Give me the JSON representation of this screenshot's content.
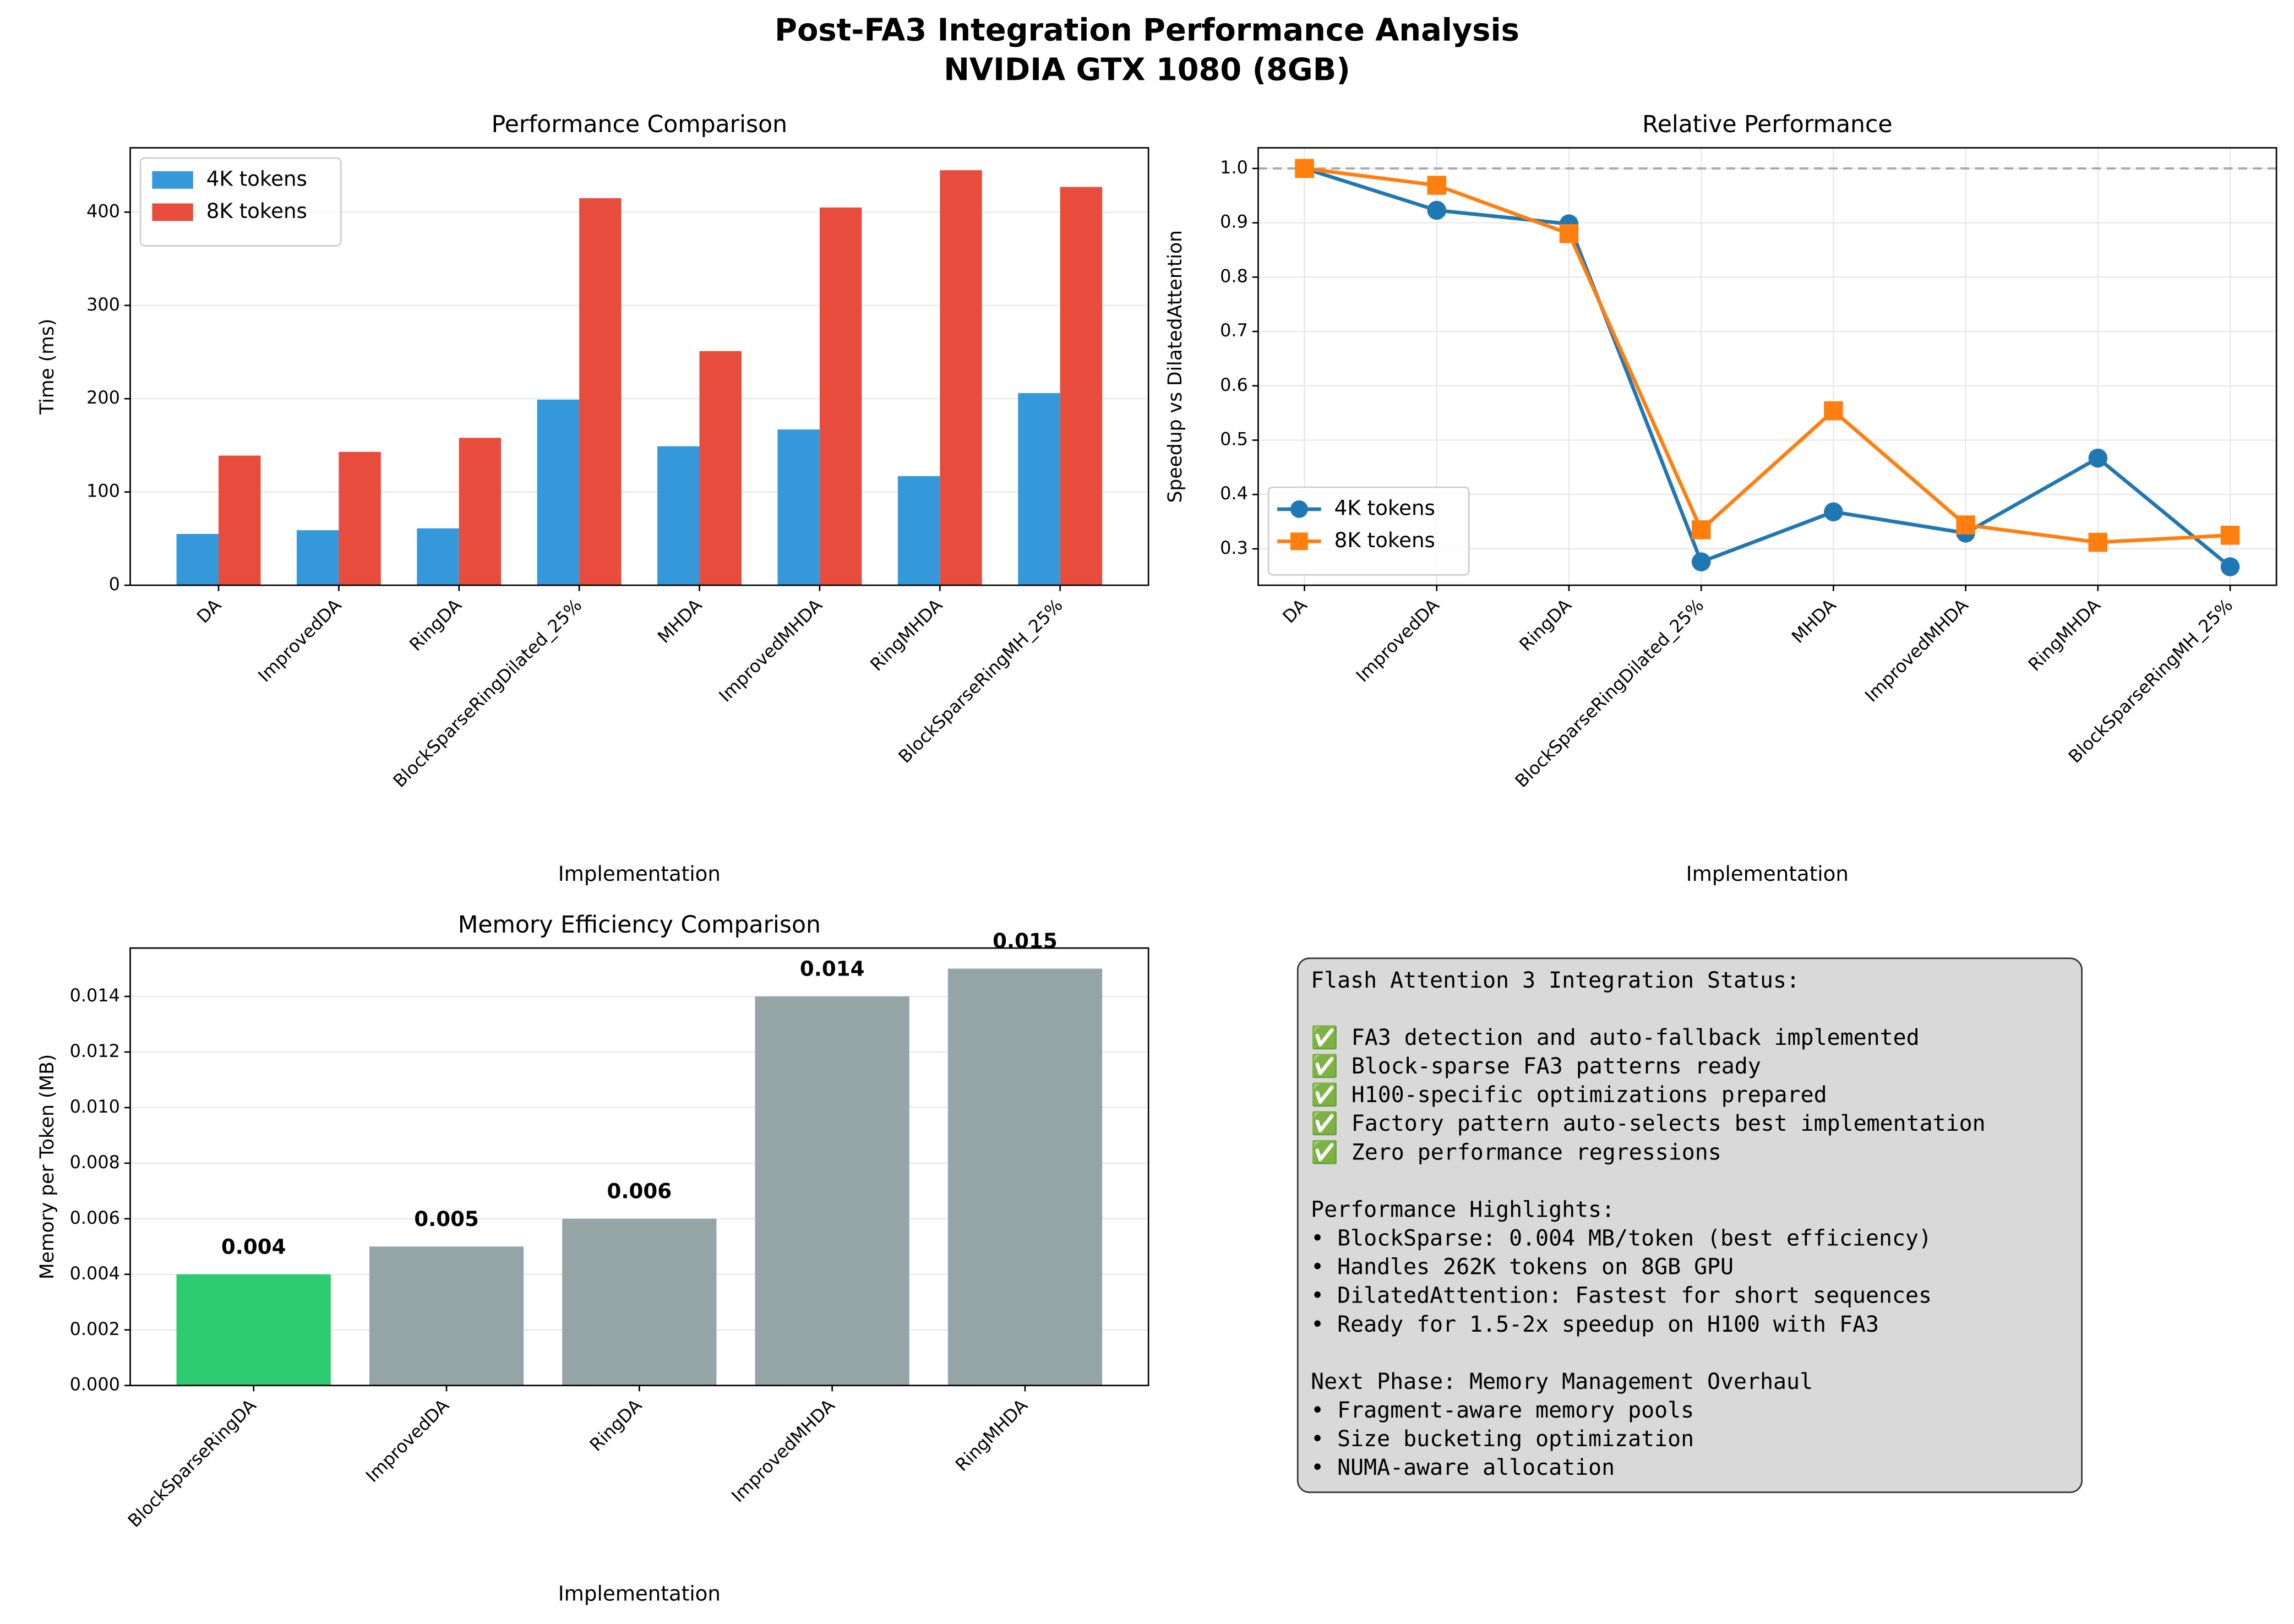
{
  "title": [
    "Post-FA3 Integration Performance Analysis",
    "NVIDIA GTX 1080 (8GB)"
  ],
  "chart_data": [
    {
      "type": "bar",
      "title": "Performance Comparison",
      "xlabel": "Implementation",
      "ylabel": "Time (ms)",
      "categories": [
        "DA",
        "ImprovedDA",
        "RingDA",
        "BlockSparseRingDilated_25%",
        "MHDA",
        "ImprovedMHDA",
        "RingMHDA",
        "BlockSparseRingMH_25%"
      ],
      "series": [
        {
          "name": "4K tokens",
          "color": "#3498db",
          "values": [
            55,
            59,
            61,
            199,
            149,
            167,
            117,
            206
          ]
        },
        {
          "name": "8K tokens",
          "color": "#e74c3c",
          "values": [
            139,
            143,
            158,
            415,
            251,
            405,
            445,
            427
          ]
        }
      ],
      "ylim": [
        0,
        469
      ],
      "yticks": [
        0,
        100,
        200,
        300,
        400
      ],
      "grid": "y",
      "legend": "upper left"
    },
    {
      "type": "line",
      "title": "Relative Performance",
      "xlabel": "Implementation",
      "ylabel": "Speedup vs DilatedAttention",
      "categories": [
        "DA",
        "ImprovedDA",
        "RingDA",
        "BlockSparseRingDilated_25%",
        "MHDA",
        "ImprovedMHDA",
        "RingMHDA",
        "BlockSparseRingMH_25%"
      ],
      "series": [
        {
          "name": "4K tokens",
          "color": "#1f77b4",
          "marker": "circle",
          "values": [
            1.0,
            0.923,
            0.898,
            0.276,
            0.368,
            0.329,
            0.467,
            0.267
          ]
        },
        {
          "name": "8K tokens",
          "color": "#ff7f0e",
          "marker": "square",
          "values": [
            1.0,
            0.969,
            0.88,
            0.335,
            0.554,
            0.344,
            0.312,
            0.325
          ]
        }
      ],
      "hline": 1.0,
      "ylim": [
        0.233,
        1.038
      ],
      "yticks": [
        0.3,
        0.4,
        0.5,
        0.6,
        0.7,
        0.8,
        0.9,
        {
          "value": 1.0,
          "label": "1.0"
        }
      ],
      "grid": "both",
      "legend": "lower left"
    },
    {
      "type": "bar",
      "title": "Memory Efficiency Comparison",
      "xlabel": "Implementation",
      "ylabel": "Memory per Token (MB)",
      "categories": [
        "BlockSparseRingDA",
        "ImprovedDA",
        "RingDA",
        "ImprovedMHDA",
        "RingMHDA"
      ],
      "values": [
        0.004,
        0.005,
        0.006,
        0.014,
        0.015
      ],
      "colors": [
        "#2ecc71",
        "#95a5a6",
        "#95a5a6",
        "#95a5a6",
        "#95a5a6"
      ],
      "ylim": [
        0,
        0.01574
      ],
      "yticks": [
        {
          "value": 0,
          "label": "0.000"
        },
        {
          "value": 0.002,
          "label": "0.002"
        },
        {
          "value": 0.004,
          "label": "0.004"
        },
        {
          "value": 0.006,
          "label": "0.006"
        },
        {
          "value": 0.008,
          "label": "0.008"
        },
        {
          "value": 0.01,
          "label": "0.010"
        },
        {
          "value": 0.012,
          "label": "0.012"
        },
        {
          "value": 0.014,
          "label": "0.014"
        }
      ],
      "grid": "y"
    }
  ],
  "text_panel": {
    "sections": [
      [
        "Flash Attention 3 Integration Status:"
      ],
      [
        "✅ FA3 detection and auto-fallback implemented",
        "✅ Block-sparse FA3 patterns ready",
        "✅ H100-specific optimizations prepared",
        "✅ Factory pattern auto-selects best implementation",
        "✅ Zero performance regressions"
      ],
      [
        "Performance Highlights:",
        "• BlockSparse: 0.004 MB/token (best efficiency)",
        "• Handles 262K tokens on 8GB GPU",
        "• DilatedAttention: Fastest for short sequences",
        "• Ready for 1.5-2x speedup on H100 with FA3"
      ],
      [
        "Next Phase: Memory Management Overhaul",
        "• Fragment-aware memory pools",
        "• Size bucketing optimization",
        "• NUMA-aware allocation"
      ]
    ]
  }
}
